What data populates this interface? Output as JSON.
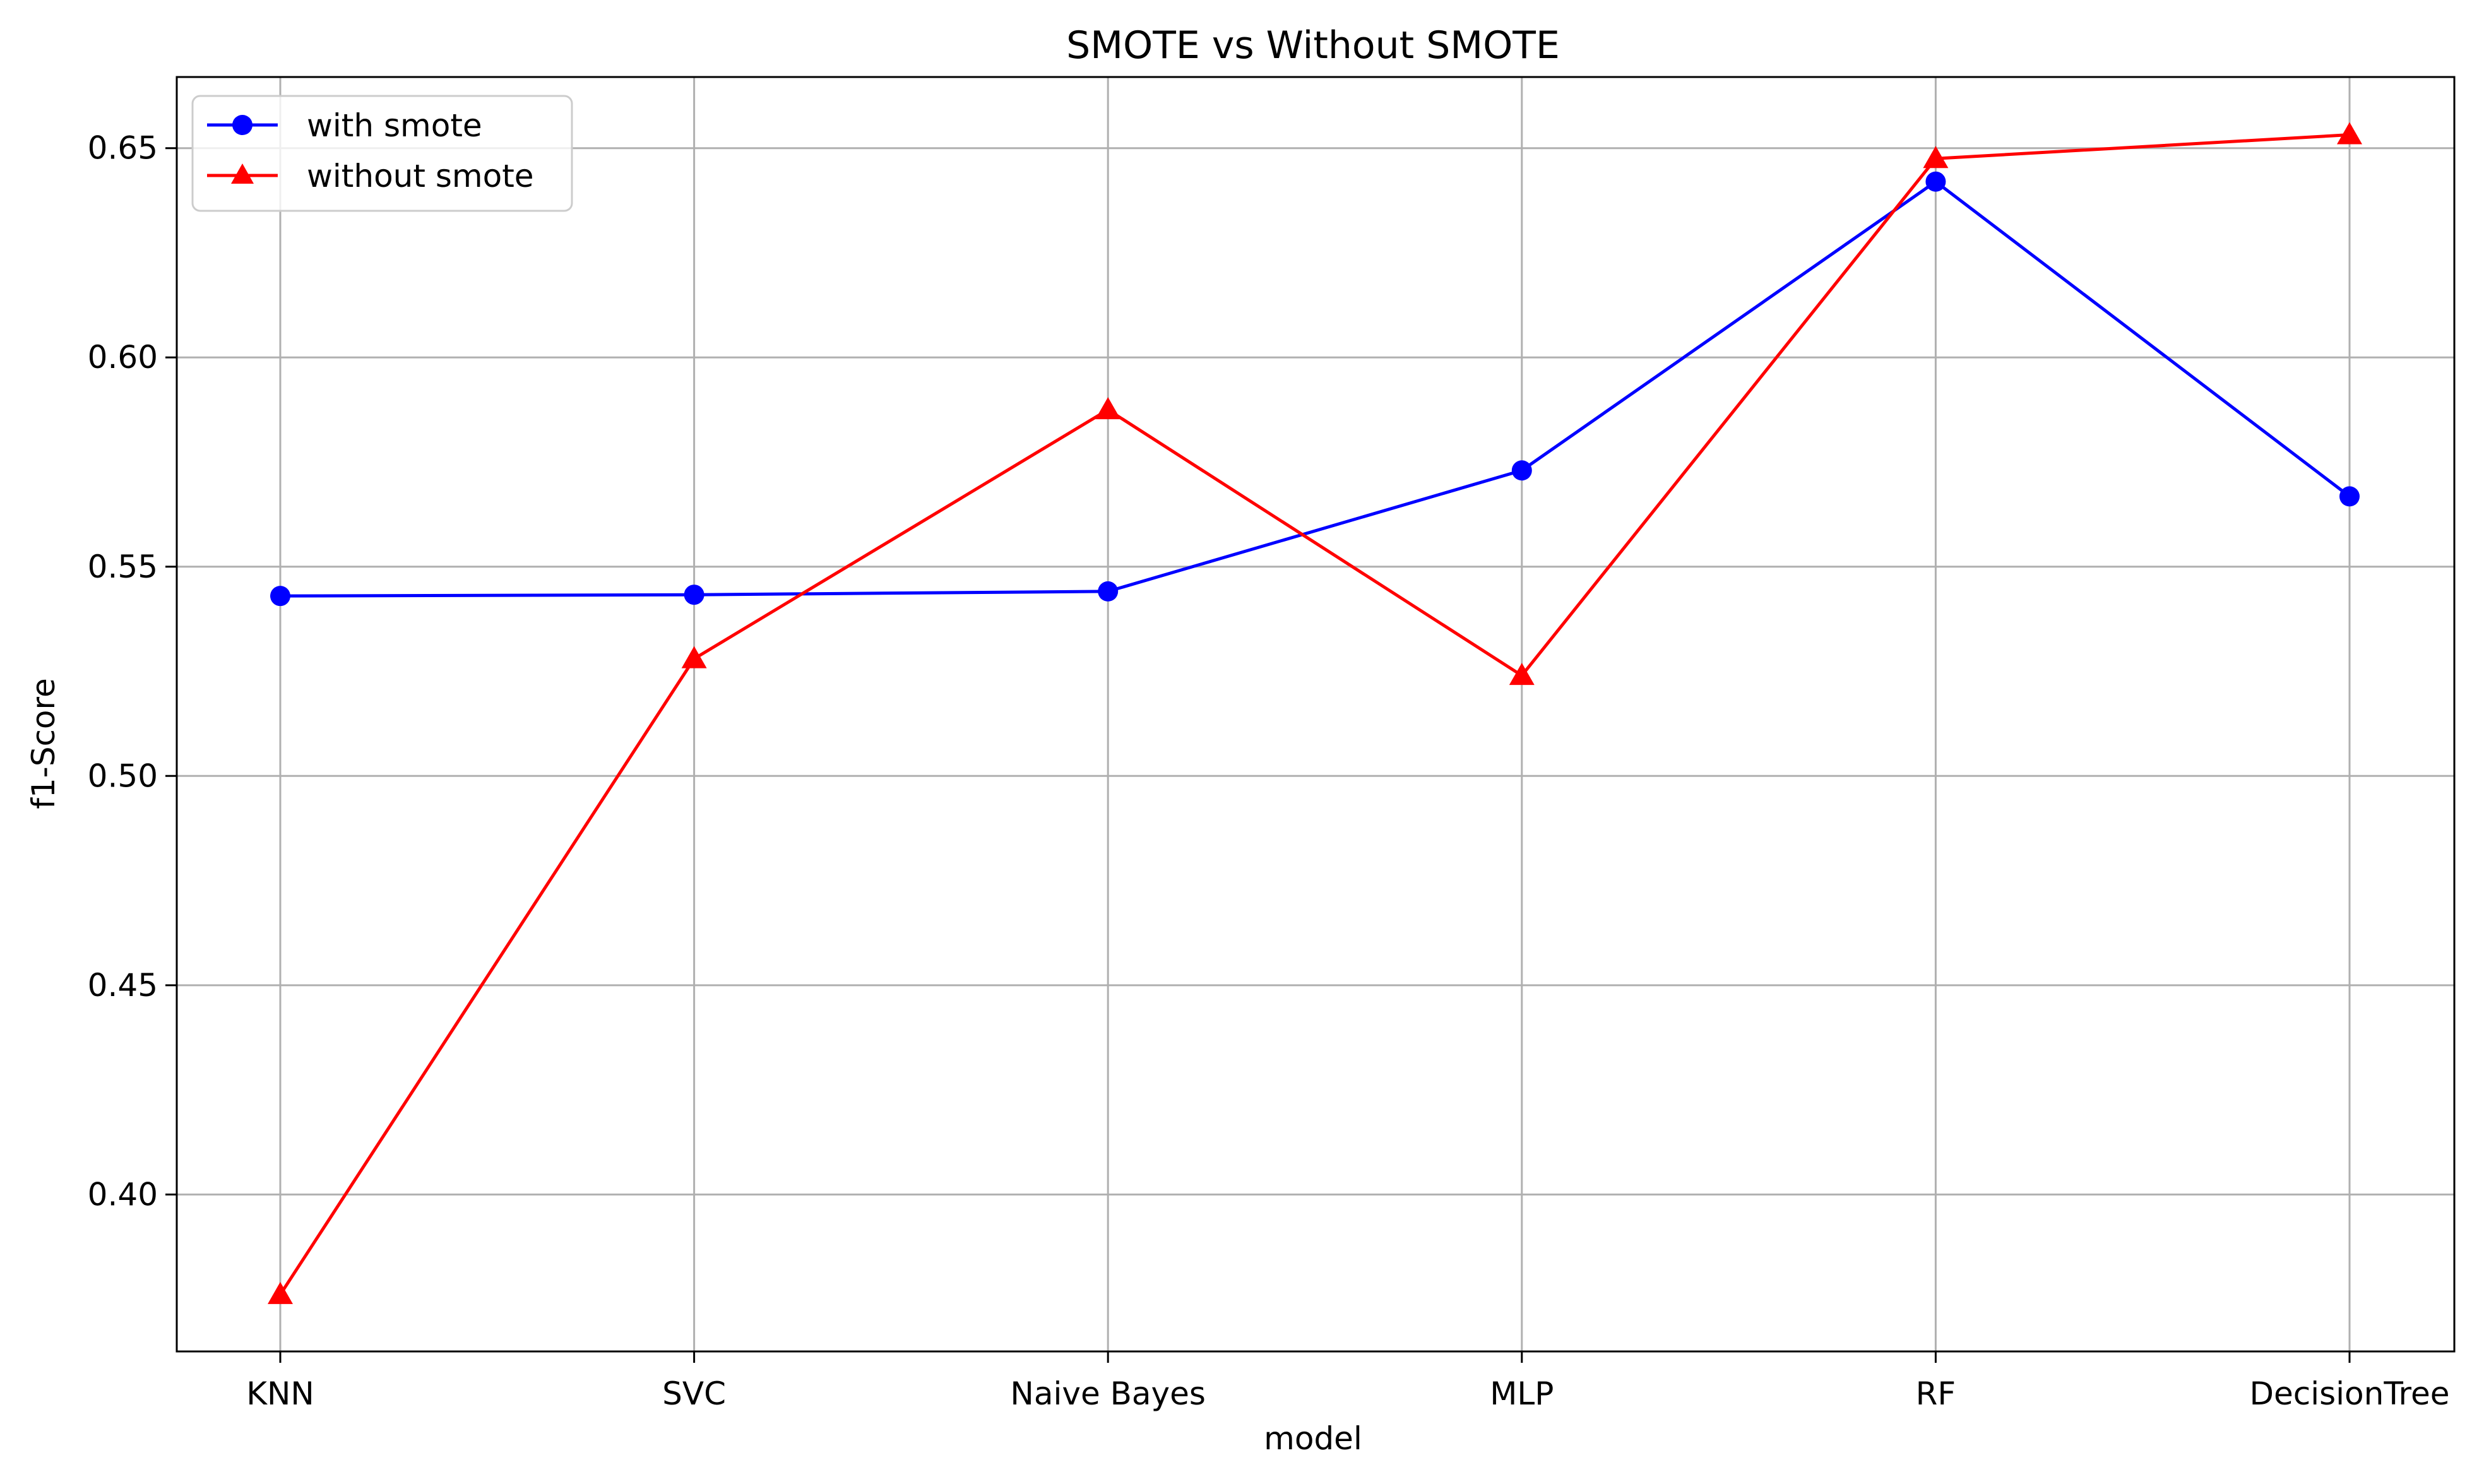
{
  "chart_data": {
    "type": "line",
    "title": "SMOTE vs Without SMOTE",
    "xlabel": "model",
    "ylabel": "f1-Score",
    "categories": [
      "KNN",
      "SVC",
      "Naive Bayes",
      "MLP",
      "RF",
      "DecisionTree"
    ],
    "series": [
      {
        "name": "with smote",
        "values": [
          0.543,
          0.5433,
          0.5441,
          0.573,
          0.642,
          0.5668
        ],
        "color": "#0000ff",
        "marker": "circle"
      },
      {
        "name": "without smote",
        "values": [
          0.3761,
          0.528,
          0.5875,
          0.524,
          0.6475,
          0.6532
        ],
        "color": "#ff0000",
        "marker": "triangle"
      }
    ],
    "ylim": [
      0.3625,
      0.667
    ],
    "yticks": [
      0.4,
      0.45,
      0.5,
      0.55,
      0.6,
      0.65
    ],
    "ytick_labels": [
      "0.40",
      "0.45",
      "0.50",
      "0.55",
      "0.60",
      "0.65"
    ],
    "grid": true,
    "legend_position": "top-left"
  }
}
